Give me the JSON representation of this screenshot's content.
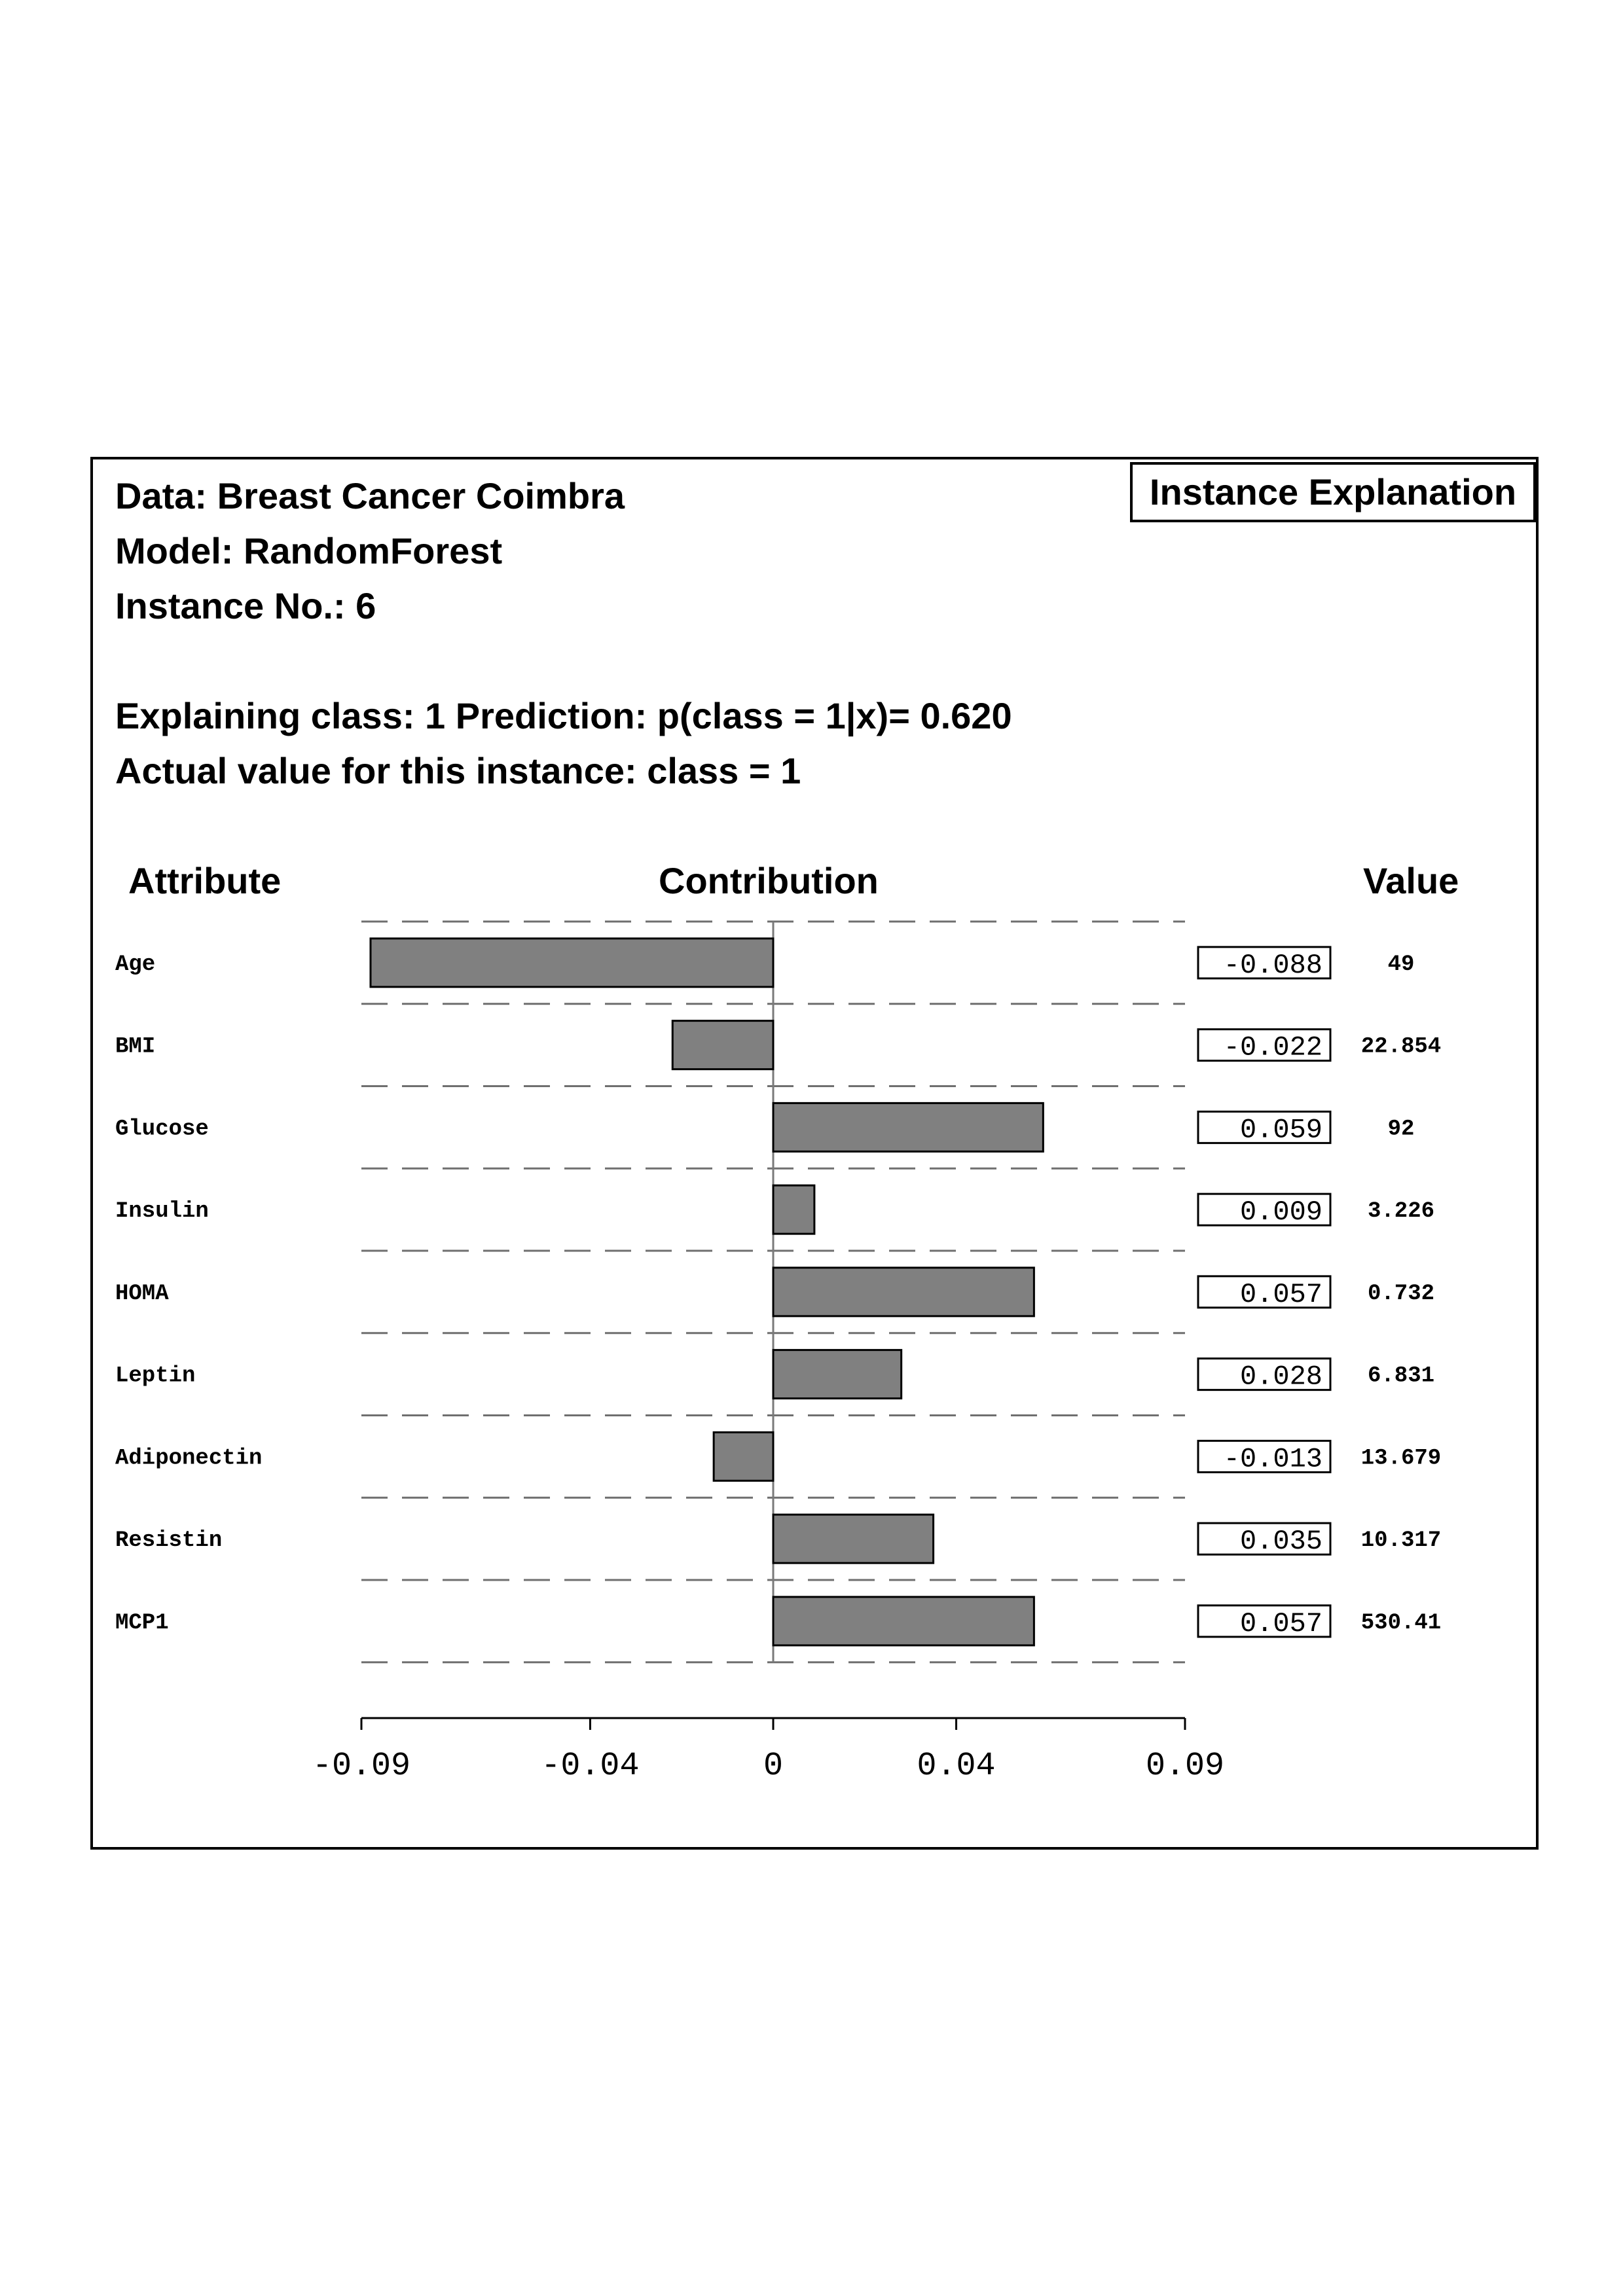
{
  "header": {
    "data_line": "Data: Breast Cancer Coimbra",
    "model_line": "Model: RandomForest",
    "instance_line": "Instance No.: 6",
    "explaining_line": "Explaining class: 1 Prediction: p(class = 1|x)= 0.620",
    "actual_line": "Actual value for this instance: class = 1",
    "badge": "Instance Explanation"
  },
  "columns": {
    "attribute": "Attribute",
    "contribution": "Contribution",
    "value": "Value"
  },
  "chart_data": {
    "type": "bar",
    "orientation": "horizontal",
    "xlim": [
      -0.09,
      0.09
    ],
    "xticks": [
      -0.09,
      -0.04,
      0,
      0.04,
      0.09
    ],
    "xtick_labels": [
      "-0.09",
      "-0.04",
      "0",
      "0.04",
      "0.09"
    ],
    "grid": "dashed horizontal separators",
    "bar_color": "#808080",
    "rows": [
      {
        "attribute": "Age",
        "contribution": -0.088,
        "contribution_label": "-0.088",
        "value": "49"
      },
      {
        "attribute": "BMI",
        "contribution": -0.022,
        "contribution_label": "-0.022",
        "value": "22.854"
      },
      {
        "attribute": "Glucose",
        "contribution": 0.059,
        "contribution_label": "0.059",
        "value": "92"
      },
      {
        "attribute": "Insulin",
        "contribution": 0.009,
        "contribution_label": "0.009",
        "value": "3.226"
      },
      {
        "attribute": "HOMA",
        "contribution": 0.057,
        "contribution_label": "0.057",
        "value": "0.732"
      },
      {
        "attribute": "Leptin",
        "contribution": 0.028,
        "contribution_label": "0.028",
        "value": "6.831"
      },
      {
        "attribute": "Adiponectin",
        "contribution": -0.013,
        "contribution_label": "-0.013",
        "value": "13.679"
      },
      {
        "attribute": "Resistin",
        "contribution": 0.035,
        "contribution_label": "0.035",
        "value": "10.317"
      },
      {
        "attribute": "MCP1",
        "contribution": 0.057,
        "contribution_label": "0.057",
        "value": "530.41"
      }
    ]
  }
}
